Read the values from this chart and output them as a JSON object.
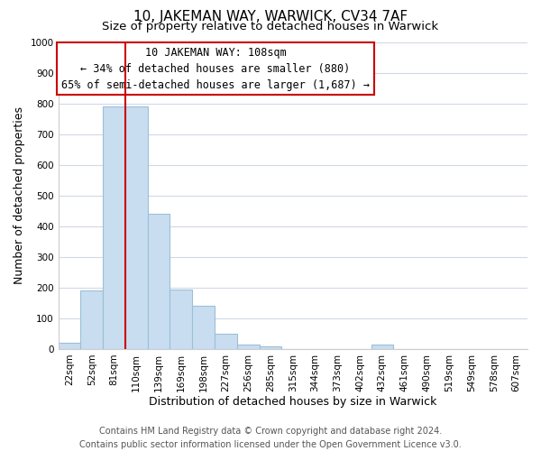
{
  "title": "10, JAKEMAN WAY, WARWICK, CV34 7AF",
  "subtitle": "Size of property relative to detached houses in Warwick",
  "xlabel": "Distribution of detached houses by size in Warwick",
  "ylabel": "Number of detached properties",
  "bar_labels": [
    "22sqm",
    "52sqm",
    "81sqm",
    "110sqm",
    "139sqm",
    "169sqm",
    "198sqm",
    "227sqm",
    "256sqm",
    "285sqm",
    "315sqm",
    "344sqm",
    "373sqm",
    "402sqm",
    "432sqm",
    "461sqm",
    "490sqm",
    "519sqm",
    "549sqm",
    "578sqm",
    "607sqm"
  ],
  "bar_heights": [
    20,
    190,
    790,
    790,
    440,
    195,
    140,
    50,
    15,
    10,
    0,
    0,
    0,
    0,
    15,
    0,
    0,
    0,
    0,
    0,
    0
  ],
  "bar_color": "#c9ddf0",
  "bar_edge_color": "#9bbfd8",
  "vline_color": "#cc0000",
  "vline_x_index": 2.5,
  "annotation_text_line1": "10 JAKEMAN WAY: 108sqm",
  "annotation_text_line2": "← 34% of detached houses are smaller (880)",
  "annotation_text_line3": "65% of semi-detached houses are larger (1,687) →",
  "annotation_box_color": "#ffffff",
  "annotation_box_edge_color": "#cc0000",
  "ylim": [
    0,
    1000
  ],
  "yticks": [
    0,
    100,
    200,
    300,
    400,
    500,
    600,
    700,
    800,
    900,
    1000
  ],
  "footer_line1": "Contains HM Land Registry data © Crown copyright and database right 2024.",
  "footer_line2": "Contains public sector information licensed under the Open Government Licence v3.0.",
  "title_fontsize": 11,
  "subtitle_fontsize": 9.5,
  "xlabel_fontsize": 9,
  "ylabel_fontsize": 9,
  "tick_fontsize": 7.5,
  "annotation_fontsize": 8.5,
  "footer_fontsize": 7,
  "background_color": "#ffffff",
  "grid_color": "#d0d8e8"
}
